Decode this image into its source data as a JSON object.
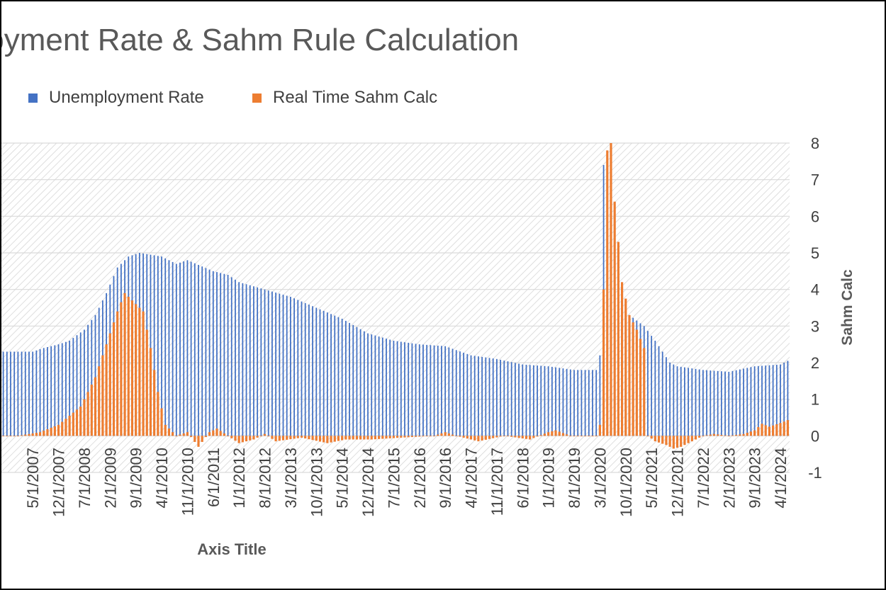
{
  "chart_data": {
    "type": "bar",
    "title": "ployment Rate & Sahm Rule Calculation",
    "xlabel": "Axis Title",
    "ylabel_right": "Sahm Calc",
    "ylim_right": [
      -1,
      8
    ],
    "y_ticks_right": [
      "8",
      "7",
      "6",
      "5",
      "4",
      "3",
      "2",
      "1",
      "0",
      "-1"
    ],
    "x_ticks": [
      "5/1/2007",
      "12/1/2007",
      "7/1/2008",
      "2/1/2009",
      "9/1/2009",
      "4/1/2010",
      "11/1/2010",
      "6/1/2011",
      "1/1/2012",
      "8/1/2012",
      "3/1/2013",
      "10/1/2013",
      "5/1/2014",
      "12/1/2014",
      "7/1/2015",
      "2/1/2016",
      "9/1/2016",
      "4/1/2017",
      "11/1/2017",
      "6/1/2018",
      "1/1/2019",
      "8/1/2019",
      "3/1/2020",
      "10/1/2020",
      "5/1/2021",
      "12/1/2021",
      "7/1/2022",
      "2/1/2023",
      "9/1/2023",
      "4/1/2024"
    ],
    "grid": true,
    "legend": "top-left",
    "colors": {
      "unemployment": "#4472C4",
      "sahm": "#ED7D31"
    },
    "series": [
      {
        "name": "Unemployment Rate",
        "anchors": [
          [
            "1/1/2007",
            2.3
          ],
          [
            "5/1/2007",
            2.3
          ],
          [
            "8/1/2007",
            2.4
          ],
          [
            "12/1/2007",
            2.5
          ],
          [
            "3/1/2008",
            2.6
          ],
          [
            "7/1/2008",
            2.9
          ],
          [
            "10/1/2008",
            3.3
          ],
          [
            "1/1/2009",
            3.9
          ],
          [
            "4/1/2009",
            4.6
          ],
          [
            "7/1/2009",
            4.9
          ],
          [
            "10/1/2009",
            5.0
          ],
          [
            "4/1/2010",
            4.9
          ],
          [
            "8/1/2010",
            4.7
          ],
          [
            "11/1/2010",
            4.8
          ],
          [
            "6/1/2011",
            4.5
          ],
          [
            "10/1/2011",
            4.4
          ],
          [
            "1/1/2012",
            4.2
          ],
          [
            "8/1/2012",
            4.0
          ],
          [
            "3/1/2013",
            3.8
          ],
          [
            "10/1/2013",
            3.5
          ],
          [
            "5/1/2014",
            3.2
          ],
          [
            "12/1/2014",
            2.8
          ],
          [
            "7/1/2015",
            2.6
          ],
          [
            "2/1/2016",
            2.5
          ],
          [
            "9/1/2016",
            2.45
          ],
          [
            "4/1/2017",
            2.2
          ],
          [
            "11/1/2017",
            2.1
          ],
          [
            "6/1/2018",
            1.95
          ],
          [
            "1/1/2019",
            1.9
          ],
          [
            "8/1/2019",
            1.8
          ],
          [
            "2/1/2020",
            1.8
          ],
          [
            "3/1/2020",
            2.2
          ],
          [
            "4/1/2020",
            7.4
          ],
          [
            "5/1/2020",
            6.5
          ],
          [
            "7/1/2020",
            5.2
          ],
          [
            "9/1/2020",
            4.0
          ],
          [
            "11/1/2020",
            3.3
          ],
          [
            "3/1/2021",
            3.0
          ],
          [
            "6/1/2021",
            2.6
          ],
          [
            "10/1/2021",
            2.0
          ],
          [
            "12/1/2021",
            1.9
          ],
          [
            "7/1/2022",
            1.8
          ],
          [
            "2/1/2023",
            1.75
          ],
          [
            "9/1/2023",
            1.9
          ],
          [
            "4/1/2024",
            1.95
          ],
          [
            "6/1/2024",
            2.05
          ]
        ]
      },
      {
        "name": "Real Time Sahm Calc",
        "anchors": [
          [
            "1/1/2007",
            0.0
          ],
          [
            "7/1/2007",
            0.1
          ],
          [
            "12/1/2007",
            0.3
          ],
          [
            "6/1/2008",
            0.8
          ],
          [
            "10/1/2008",
            1.6
          ],
          [
            "1/1/2009",
            2.5
          ],
          [
            "4/1/2009",
            3.4
          ],
          [
            "6/1/2009",
            3.9
          ],
          [
            "9/1/2009",
            3.6
          ],
          [
            "11/1/2009",
            3.4
          ],
          [
            "1/1/2010",
            2.4
          ],
          [
            "3/1/2010",
            1.2
          ],
          [
            "5/1/2010",
            0.3
          ],
          [
            "8/1/2010",
            0.0
          ],
          [
            "11/1/2010",
            0.1
          ],
          [
            "2/1/2011",
            -0.3
          ],
          [
            "5/1/2011",
            0.1
          ],
          [
            "7/1/2011",
            0.2
          ],
          [
            "10/1/2011",
            0.0
          ],
          [
            "1/1/2012",
            -0.2
          ],
          [
            "5/1/2012",
            -0.1
          ],
          [
            "8/1/2012",
            0.05
          ],
          [
            "11/1/2012",
            -0.15
          ],
          [
            "6/1/2013",
            -0.05
          ],
          [
            "1/1/2014",
            -0.2
          ],
          [
            "6/1/2014",
            -0.1
          ],
          [
            "1/1/2015",
            -0.1
          ],
          [
            "9/1/2015",
            -0.05
          ],
          [
            "6/1/2016",
            0.0
          ],
          [
            "9/1/2016",
            0.1
          ],
          [
            "12/1/2016",
            0.0
          ],
          [
            "6/1/2017",
            -0.15
          ],
          [
            "1/1/2018",
            0.0
          ],
          [
            "8/1/2018",
            -0.1
          ],
          [
            "1/1/2019",
            0.1
          ],
          [
            "3/1/2019",
            0.15
          ],
          [
            "7/1/2019",
            0.0
          ],
          [
            "2/1/2020",
            0.0
          ],
          [
            "3/1/2020",
            0.3
          ],
          [
            "4/1/2020",
            4.0
          ],
          [
            "5/1/2020",
            7.8
          ],
          [
            "6/1/2020",
            8.0
          ],
          [
            "7/1/2020",
            6.4
          ],
          [
            "8/1/2020",
            5.3
          ],
          [
            "9/1/2020",
            4.2
          ],
          [
            "11/1/2020",
            3.3
          ],
          [
            "1/1/2021",
            2.9
          ],
          [
            "3/1/2021",
            2.4
          ],
          [
            "4/1/2021",
            0.0
          ],
          [
            "6/1/2021",
            -0.15
          ],
          [
            "9/1/2021",
            -0.25
          ],
          [
            "11/1/2021",
            -0.35
          ],
          [
            "1/1/2022",
            -0.3
          ],
          [
            "4/1/2022",
            -0.15
          ],
          [
            "7/1/2022",
            0.0
          ],
          [
            "10/1/2022",
            0.05
          ],
          [
            "2/1/2023",
            0.0
          ],
          [
            "6/1/2023",
            0.05
          ],
          [
            "9/1/2023",
            0.15
          ],
          [
            "11/1/2023",
            0.33
          ],
          [
            "1/1/2024",
            0.25
          ],
          [
            "4/1/2024",
            0.35
          ],
          [
            "6/1/2024",
            0.43
          ]
        ]
      }
    ]
  }
}
